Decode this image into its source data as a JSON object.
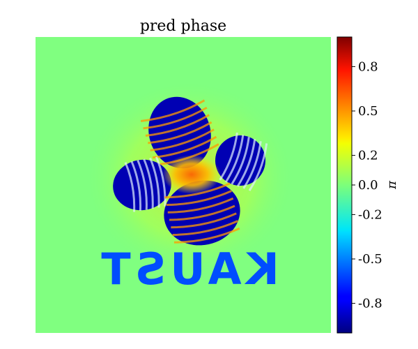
{
  "chart_data": {
    "type": "heatmap",
    "title": "pred phase",
    "colormap": "jet",
    "colorbar": {
      "label": "π",
      "range": [
        -1,
        1
      ],
      "tick_values": [
        0.8,
        0.5,
        0.2,
        0.0,
        -0.2,
        -0.5,
        -0.8
      ],
      "tick_labels": [
        "0.8",
        "0.5",
        "0.2",
        "0.0",
        "-0.2",
        "-0.5",
        "-0.8"
      ]
    },
    "background_value": 0.0,
    "petal_value": -0.9,
    "fringe_value": 0.45,
    "center_value": 0.6,
    "text_overlay": "KAUST",
    "text_overlay_mirrored": true,
    "text_overlay_value": -0.6
  }
}
